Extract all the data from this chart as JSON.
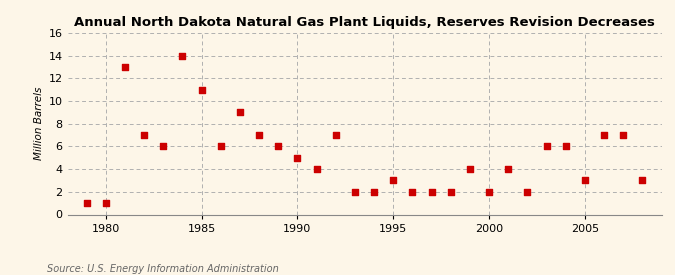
{
  "title": "Annual North Dakota Natural Gas Plant Liquids, Reserves Revision Decreases",
  "ylabel": "Million Barrels",
  "source": "Source: U.S. Energy Information Administration",
  "background_color": "#fdf6e8",
  "marker_color": "#cc0000",
  "xlim": [
    1978,
    2009
  ],
  "ylim": [
    0,
    16
  ],
  "yticks": [
    0,
    2,
    4,
    6,
    8,
    10,
    12,
    14,
    16
  ],
  "xticks": [
    1980,
    1985,
    1990,
    1995,
    2000,
    2005
  ],
  "years": [
    1979,
    1980,
    1981,
    1982,
    1983,
    1984,
    1985,
    1986,
    1987,
    1988,
    1989,
    1990,
    1991,
    1992,
    1993,
    1994,
    1995,
    1996,
    1997,
    1998,
    1999,
    2000,
    2001,
    2002,
    2003,
    2004,
    2005,
    2006,
    2007,
    2008
  ],
  "values": [
    1,
    1,
    13,
    7,
    6,
    14,
    11,
    6,
    9,
    7,
    6,
    5,
    4,
    7,
    2,
    2,
    3,
    2,
    2,
    2,
    4,
    2,
    4,
    2,
    6,
    6,
    3,
    7,
    7,
    3
  ]
}
